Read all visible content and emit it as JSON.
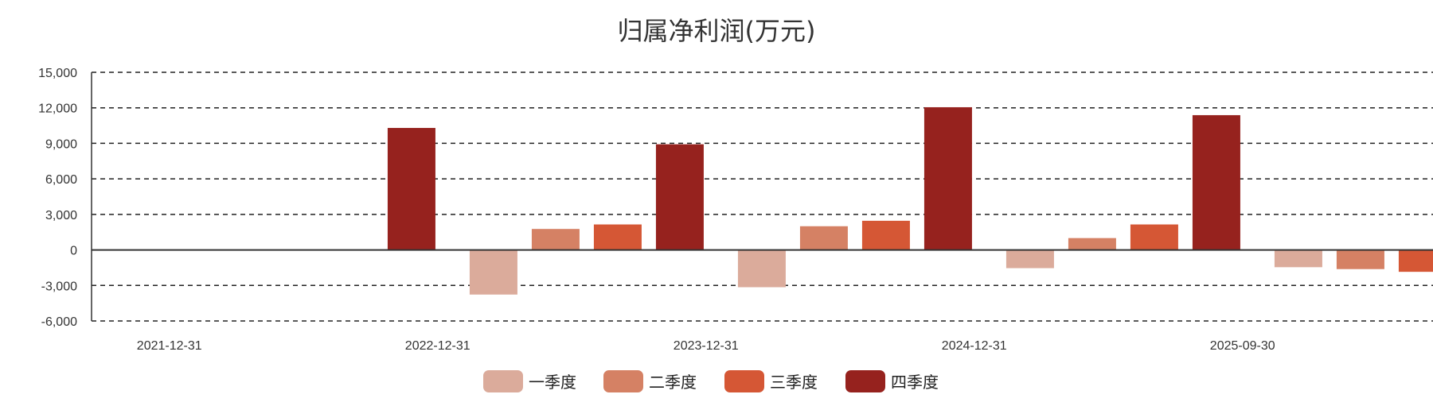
{
  "chart_data": {
    "type": "bar",
    "title": "归属净利润(万元)",
    "xlabel": "",
    "ylabel": "",
    "ylim": [
      -6000,
      15000
    ],
    "yticks": [
      -6000,
      -3000,
      0,
      3000,
      6000,
      9000,
      12000,
      15000
    ],
    "ytick_labels": [
      "-6,000",
      "-3,000",
      "0",
      "3,000",
      "6,000",
      "9,000",
      "12,000",
      "15,000"
    ],
    "grid": true,
    "legend_position": "bottom",
    "categories": [
      "2021-12-31",
      "2022-12-31",
      "2023-12-31",
      "2024-12-31",
      "2025-09-30"
    ],
    "series": [
      {
        "name": "一季度",
        "color": "#dbab9b",
        "values": [
          null,
          -3770,
          -3150,
          -1540,
          -1460
        ]
      },
      {
        "name": "二季度",
        "color": "#d58164",
        "values": [
          null,
          1770,
          2000,
          1000,
          -1620
        ]
      },
      {
        "name": "三季度",
        "color": "#d55735",
        "values": [
          null,
          2150,
          2460,
          2150,
          -1850
        ]
      },
      {
        "name": "四季度",
        "color": "#96221e",
        "values": [
          10300,
          8920,
          12050,
          11380,
          null
        ]
      }
    ]
  }
}
